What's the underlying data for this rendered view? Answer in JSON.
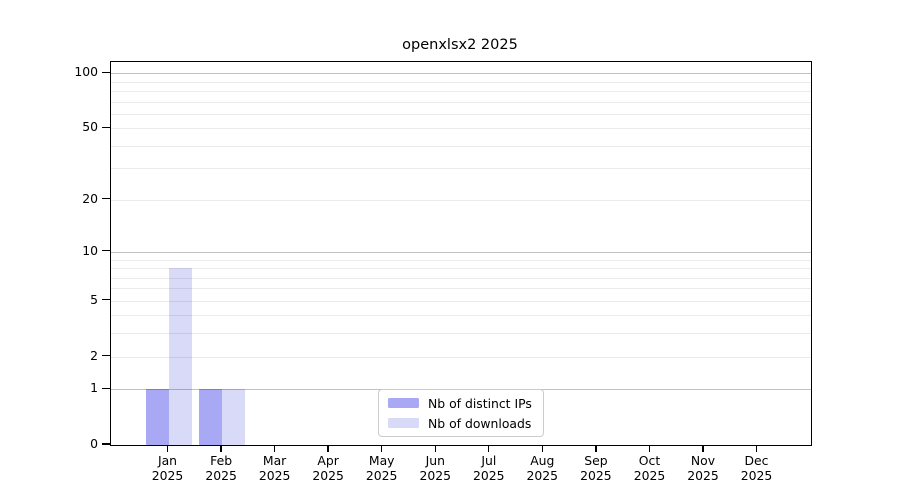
{
  "title": "openxlsx2 2025",
  "chart_data": {
    "type": "bar",
    "title": "openxlsx2 2025",
    "categories": [
      "Jan",
      "Feb",
      "Mar",
      "Apr",
      "May",
      "Jun",
      "Jul",
      "Aug",
      "Sep",
      "Oct",
      "Nov",
      "Dec"
    ],
    "x_year": "2025",
    "series": [
      {
        "name": "Nb of distinct IPs",
        "color": "#a8a8f5",
        "values": [
          1,
          1,
          0,
          0,
          0,
          0,
          0,
          0,
          0,
          0,
          0,
          0
        ]
      },
      {
        "name": "Nb of downloads",
        "color": "#d9d9f8",
        "values": [
          8,
          1,
          0,
          0,
          0,
          0,
          0,
          0,
          0,
          0,
          0,
          0
        ]
      }
    ],
    "xlabel": "",
    "ylabel": "",
    "y_scale": "log1p",
    "ylim": [
      0,
      115
    ],
    "y_ticks": [
      0,
      1,
      2,
      5,
      10,
      20,
      50,
      100
    ],
    "y_minor_gridlines": [
      3,
      4,
      6,
      7,
      8,
      9,
      30,
      40,
      60,
      70,
      80,
      90
    ],
    "y_decade_gridlines": [
      1,
      10,
      100
    ],
    "grid": true,
    "legend_position": "bottom-center",
    "colors": {
      "distinct_ips": "#a8a8f5",
      "downloads": "#d9d9f8",
      "grid_decade": "#bfbfbf",
      "grid_minor": "#ebebeb",
      "axis": "#000000",
      "legend_border": "#cccccc",
      "background": "#ffffff"
    }
  }
}
